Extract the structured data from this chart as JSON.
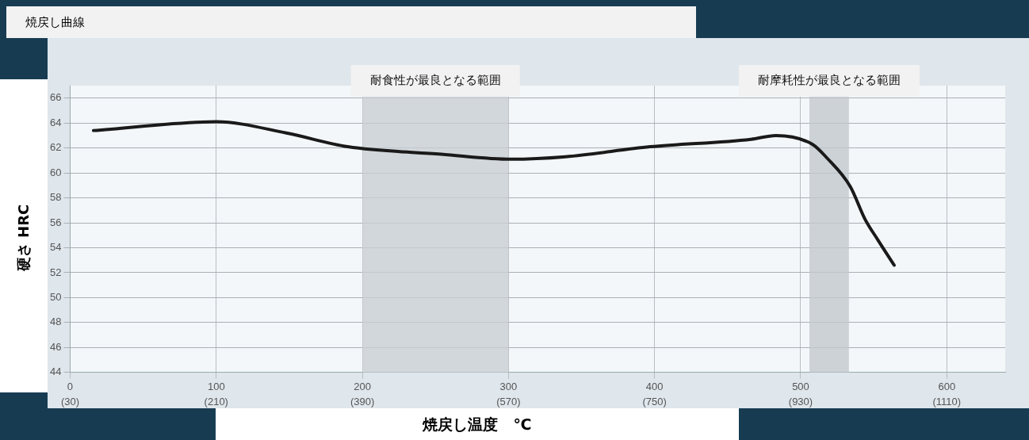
{
  "chart_data": {
    "type": "line",
    "title": "焼戻し曲線",
    "xlabel": "焼戻し温度　℃",
    "ylabel": "硬さ HRC",
    "x": [
      16,
      100,
      148,
      190,
      254,
      302,
      339,
      397,
      466,
      483,
      508,
      518,
      534,
      544,
      553,
      564
    ],
    "series": [
      {
        "color": "#1a1a1a",
        "values": [
          63.4,
          64.1,
          63.2,
          62.1,
          61.5,
          61.1,
          61.3,
          62.1,
          62.7,
          63.0,
          62.3,
          61.2,
          58.9,
          56.3,
          54.6,
          52.6
        ]
      }
    ],
    "xlim": [
      0,
      640
    ],
    "xticks": [
      0,
      100,
      200,
      300,
      400,
      500,
      600
    ],
    "x2lim": [
      30,
      1182
    ],
    "x2ticks": [
      {
        "value": 30,
        "label": "(30)"
      },
      {
        "value": 210,
        "label": "(210)"
      },
      {
        "value": 390,
        "label": "(390)"
      },
      {
        "value": 570,
        "label": "(570)"
      },
      {
        "value": 750,
        "label": "(750)"
      },
      {
        "value": 930,
        "label": "(930)"
      },
      {
        "value": 1110,
        "label": "(1110)"
      }
    ],
    "ylim": [
      44,
      67
    ],
    "yticks": [
      44,
      46,
      48,
      50,
      52,
      54,
      56,
      58,
      60,
      62,
      64,
      66
    ],
    "bands": [
      {
        "axis": "x",
        "from": 200,
        "to": 300,
        "label": "耐食性が最良となる範囲",
        "color": "#c9ced3"
      },
      {
        "axis": "x",
        "from": 506,
        "to": 533,
        "label": "耐摩耗性が最良となる範囲",
        "color": "#c2c8cd"
      }
    ],
    "grid": true,
    "legend": false,
    "marker": "none",
    "line_style": "solid"
  }
}
